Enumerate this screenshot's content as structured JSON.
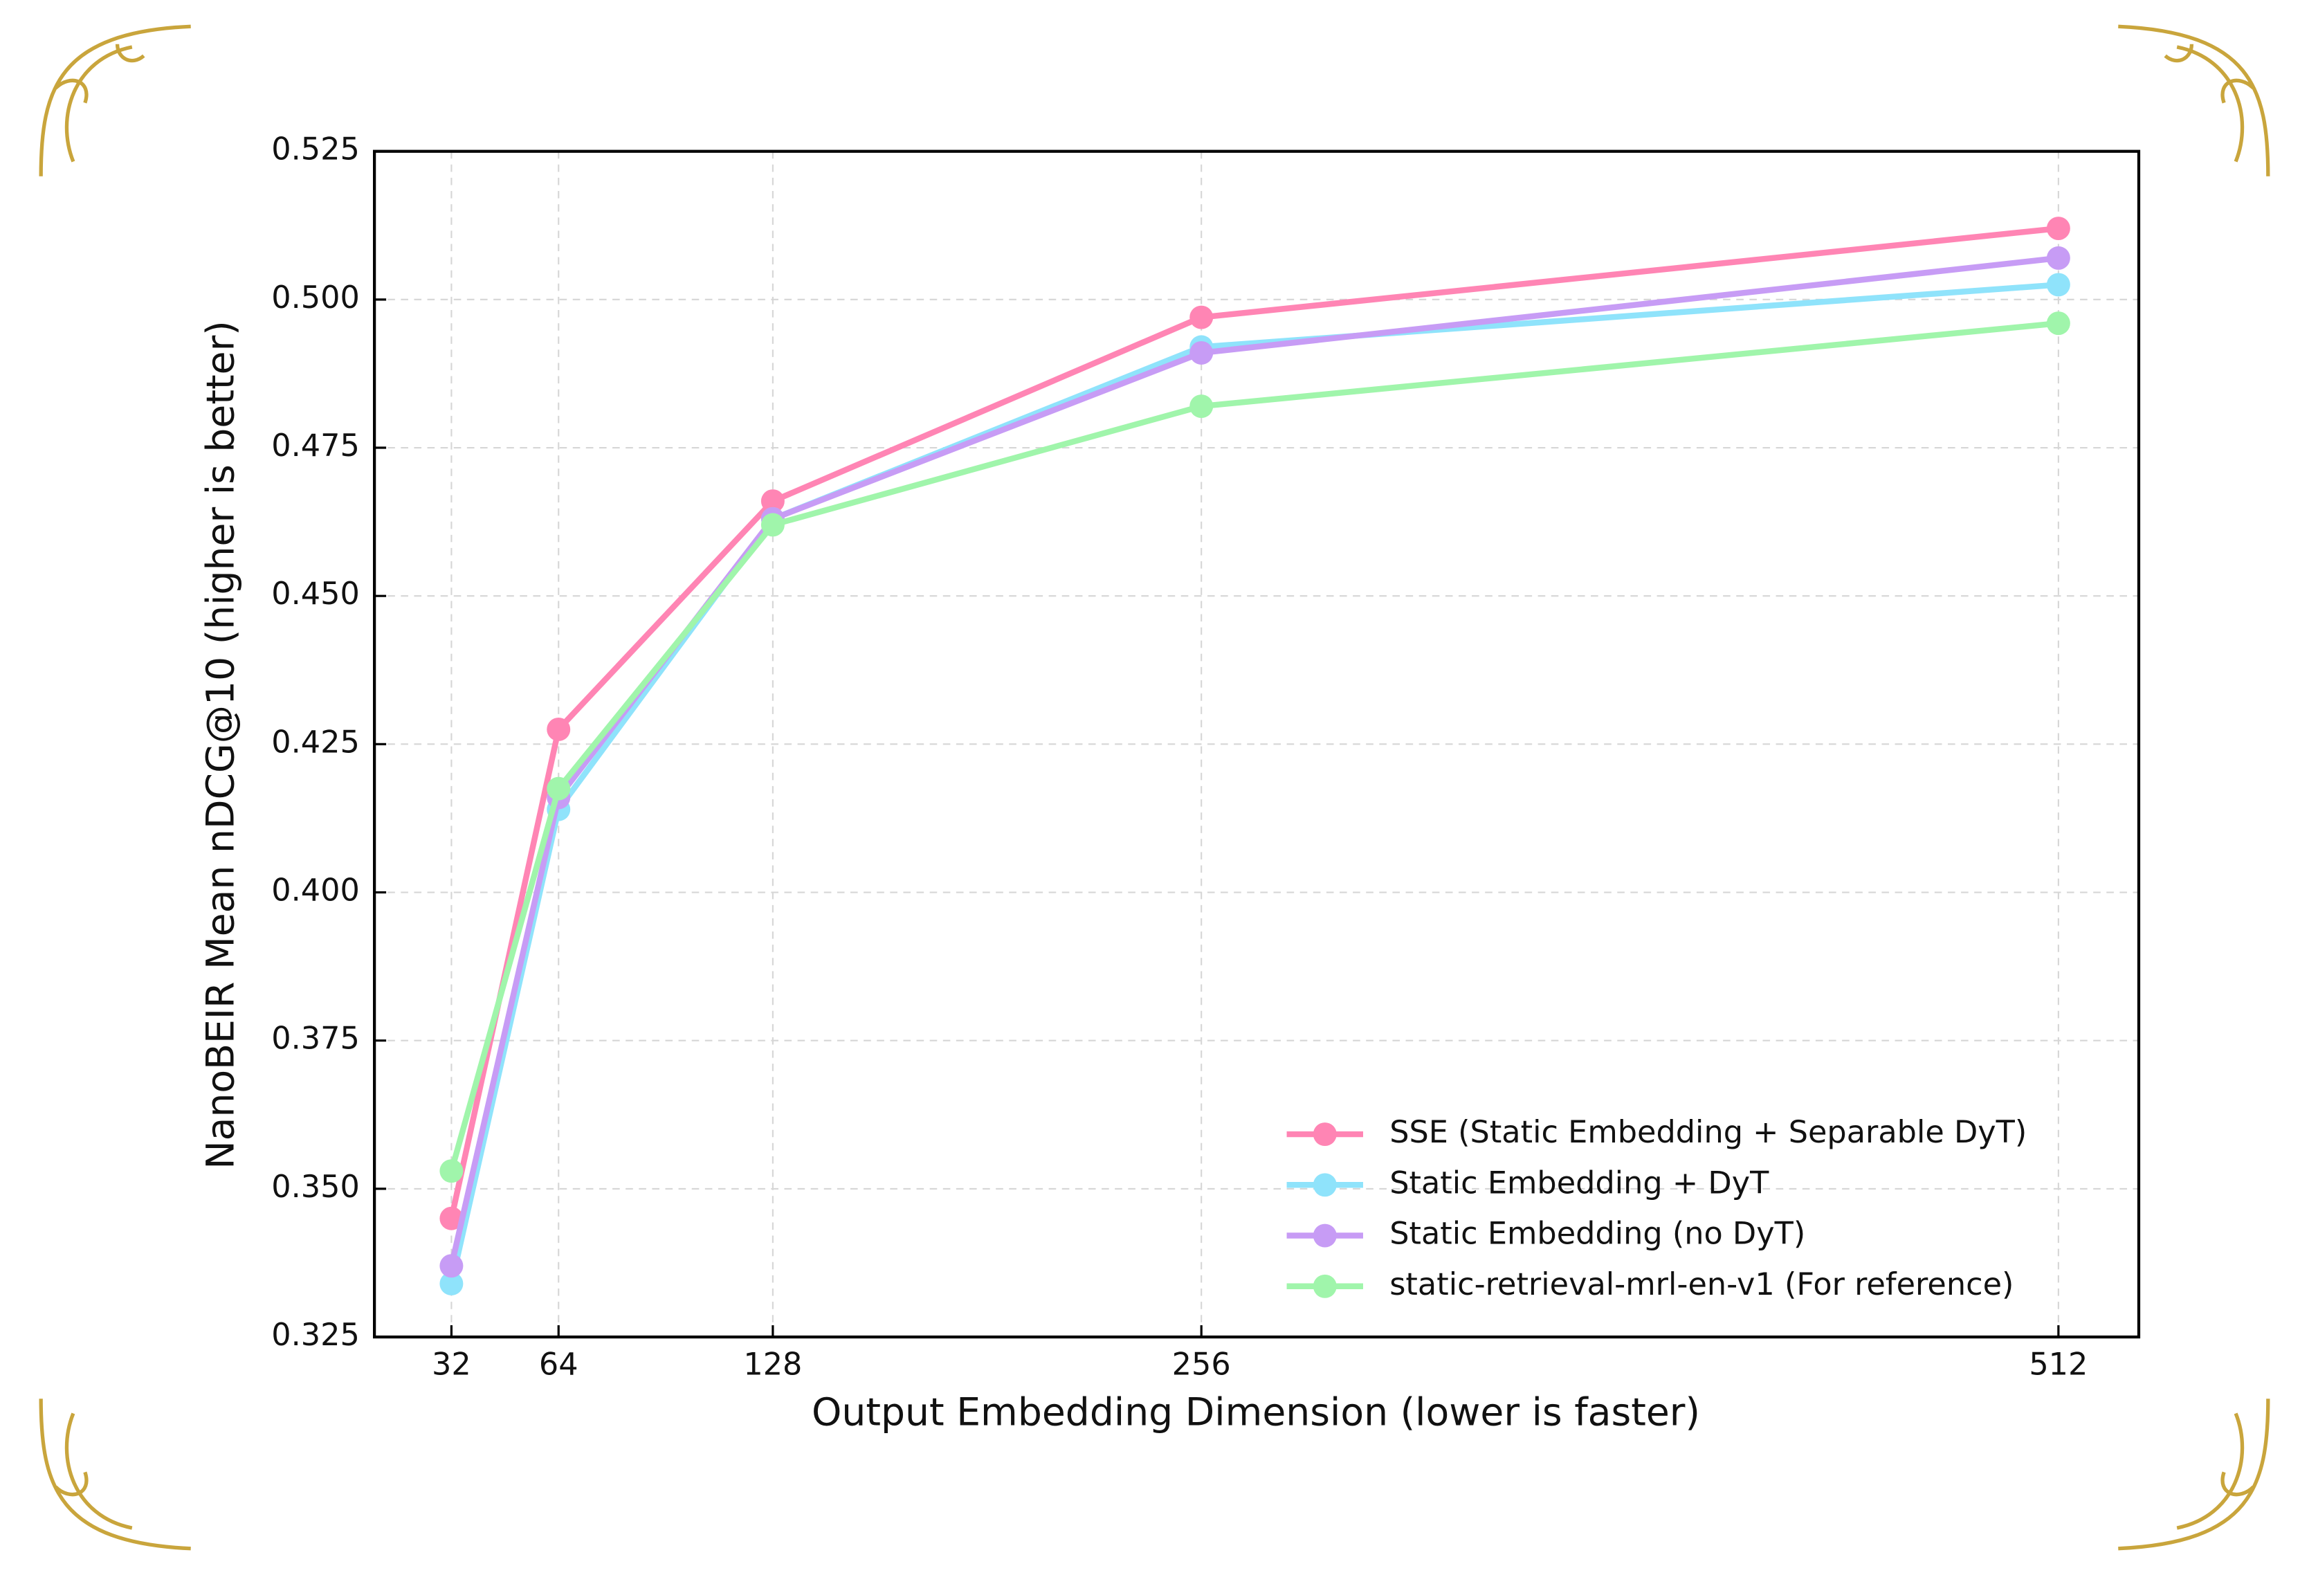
{
  "chart_data": {
    "type": "line",
    "x_label": "Output Embedding Dimension (lower is faster)",
    "y_label": "NanoBEIR Mean nDCG@10 (higher is better)",
    "x": [
      32,
      64,
      128,
      256,
      512
    ],
    "series": [
      {
        "name": "SSE (Static Embedding + Separable DyT)",
        "color": "#ff85b4",
        "values": [
          0.345,
          0.4275,
          0.466,
          0.497,
          0.512
        ]
      },
      {
        "name": "Static Embedding + DyT",
        "color": "#8fe3fb",
        "values": [
          0.334,
          0.414,
          0.463,
          0.492,
          0.5025
        ]
      },
      {
        "name": "Static Embedding (no DyT)",
        "color": "#c79cf5",
        "values": [
          0.337,
          0.416,
          0.463,
          0.491,
          0.507
        ]
      },
      {
        "name": "static-retrieval-mrl-en-v1 (For reference)",
        "color": "#a0f5ab",
        "values": [
          0.353,
          0.4175,
          0.462,
          0.482,
          0.496
        ]
      }
    ],
    "xlim": [
      9,
      536
    ],
    "xticks": [
      32,
      64,
      128,
      256,
      512
    ],
    "ylim": [
      0.325,
      0.525
    ],
    "yticks": [
      0.325,
      {
        "value": 0.35,
        "label": "0.350"
      },
      0.375,
      {
        "value": 0.4,
        "label": "0.400"
      },
      0.425,
      {
        "value": 0.45,
        "label": "0.450"
      },
      0.475,
      {
        "value": 0.5,
        "label": "0.500"
      },
      0.525
    ],
    "grid": true,
    "legend": "lower right"
  }
}
